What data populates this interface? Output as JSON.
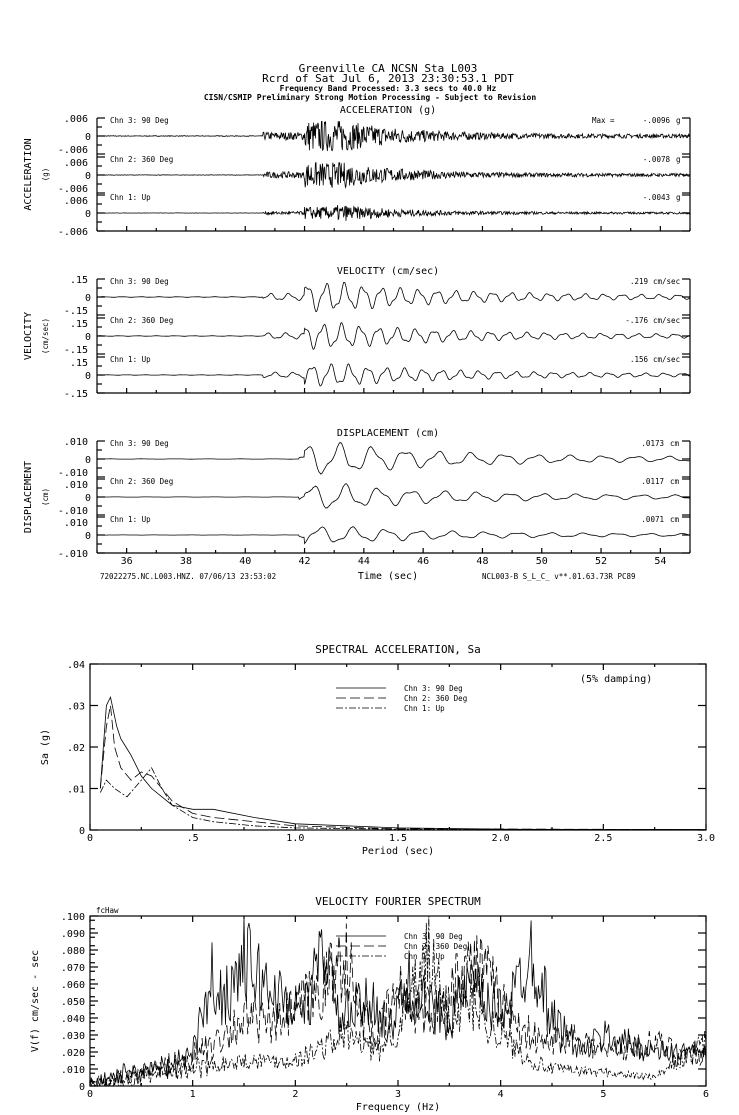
{
  "header": {
    "line1": "Greenville CA    NCSN Sta L003",
    "line2": "Rcrd of Sat Jul  6, 2013 23:30:53.1 PDT",
    "line3": "Frequency Band Processed: 3.3 secs to 40.0 Hz",
    "line4": "CISN/CSMIP Preliminary Strong Motion Processing - Subject to Revision"
  },
  "footer": {
    "left": "72022275.NC.L003.HNZ. 07/06/13 23:53:02",
    "right": "NCL003-B  S_L_C_  v**.01.63.73R PC89"
  },
  "chart_data": [
    {
      "type": "line",
      "title": "ACCELERATION (g)",
      "ylabel": "ACCELERATION",
      "yunit": "(g)",
      "xlabel": "Time (sec)",
      "xlim": [
        35,
        55
      ],
      "xticks": [
        "36",
        "38",
        "40",
        "42",
        "44",
        "46",
        "48",
        "50",
        "52",
        "54"
      ],
      "ylim": [
        -0.006,
        0.006
      ],
      "yticks": [
        ".006",
        "0",
        "-.006"
      ],
      "max_prefix": "Max =",
      "series": [
        {
          "name": "Chn 3: 90 Deg",
          "peak": "-.0096",
          "unit": "g"
        },
        {
          "name": "Chn 2: 360 Deg",
          "peak": "-.0078",
          "unit": "g"
        },
        {
          "name": "Chn 1: Up",
          "peak": "-.0043",
          "unit": "g"
        }
      ]
    },
    {
      "type": "line",
      "title": "VELOCITY (cm/sec)",
      "ylabel": "VELOCITY",
      "yunit": "(cm/sec)",
      "xlim": [
        35,
        55
      ],
      "ylim": [
        -0.15,
        0.15
      ],
      "yticks": [
        ".15",
        "0",
        "-.15"
      ],
      "series": [
        {
          "name": "Chn 3: 90 Deg",
          "peak": ".219",
          "unit": "cm/sec"
        },
        {
          "name": "Chn 2: 360 Deg",
          "peak": "-.176",
          "unit": "cm/sec"
        },
        {
          "name": "Chn 1: Up",
          "peak": ".156",
          "unit": "cm/sec"
        }
      ]
    },
    {
      "type": "line",
      "title": "DISPLACEMENT (cm)",
      "ylabel": "DISPLACEMENT",
      "yunit": "(cm)",
      "xlim": [
        35,
        55
      ],
      "ylim": [
        -0.01,
        0.01
      ],
      "yticks": [
        ".010",
        "0",
        "-.010"
      ],
      "series": [
        {
          "name": "Chn 3: 90 Deg",
          "peak": ".0173",
          "unit": "cm"
        },
        {
          "name": "Chn 2: 360 Deg",
          "peak": ".0117",
          "unit": "cm"
        },
        {
          "name": "Chn 1: Up",
          "peak": ".0071",
          "unit": "cm"
        }
      ]
    },
    {
      "type": "line",
      "title": "SPECTRAL ACCELERATION, Sa",
      "annotation": "(5% damping)",
      "xlabel": "Period (sec)",
      "ylabel": "Sa (g)",
      "xlim": [
        0,
        3
      ],
      "ylim": [
        0,
        0.04
      ],
      "xticks": [
        "0",
        ".5",
        "1.0",
        "1.5",
        "2.0",
        "2.5",
        "3.0"
      ],
      "yticks": [
        "0",
        ".01",
        ".02",
        ".03",
        ".04"
      ],
      "legend": "top-center",
      "series": [
        {
          "name": "Chn 3: 90 Deg",
          "style": "solid",
          "x": [
            0.05,
            0.08,
            0.1,
            0.13,
            0.15,
            0.2,
            0.25,
            0.3,
            0.4,
            0.5,
            0.6,
            0.8,
            1.0,
            1.5,
            2.0,
            3.0
          ],
          "y": [
            0.01,
            0.03,
            0.032,
            0.025,
            0.022,
            0.018,
            0.013,
            0.01,
            0.006,
            0.005,
            0.005,
            0.003,
            0.0015,
            0.0005,
            0.0002,
            0.0001
          ]
        },
        {
          "name": "Chn 2: 360 Deg",
          "style": "dashed",
          "x": [
            0.05,
            0.08,
            0.1,
            0.12,
            0.15,
            0.2,
            0.25,
            0.3,
            0.4,
            0.5,
            0.6,
            0.8,
            1.0,
            1.5,
            3.0
          ],
          "y": [
            0.01,
            0.025,
            0.03,
            0.02,
            0.015,
            0.012,
            0.014,
            0.013,
            0.007,
            0.004,
            0.003,
            0.002,
            0.001,
            0.0003,
            0.0001
          ]
        },
        {
          "name": "Chn 1: Up",
          "style": "dashdot",
          "x": [
            0.05,
            0.08,
            0.12,
            0.18,
            0.25,
            0.3,
            0.35,
            0.4,
            0.5,
            0.6,
            0.8,
            1.0,
            1.5,
            3.0
          ],
          "y": [
            0.009,
            0.012,
            0.01,
            0.008,
            0.012,
            0.015,
            0.01,
            0.006,
            0.003,
            0.002,
            0.001,
            0.0005,
            0.0002,
            0.0001
          ]
        }
      ]
    },
    {
      "type": "line",
      "title": "VELOCITY FOURIER SPECTRUM",
      "corner_label": "fcHaw",
      "xlabel": "Frequency (Hz)",
      "ylabel": "V(f)   cm/sec - sec",
      "xlim": [
        0,
        6
      ],
      "ylim": [
        0,
        0.1
      ],
      "xticks": [
        "0",
        "1",
        "2",
        "3",
        "4",
        "5",
        "6"
      ],
      "yticks": [
        "0",
        ".010",
        ".020",
        ".030",
        ".040",
        ".050",
        ".060",
        ".070",
        ".080",
        ".090",
        ".100"
      ],
      "legend": "top-center",
      "series": [
        {
          "name": "Chn 3: 90 Deg",
          "style": "solid",
          "x": [
            0,
            0.3,
            0.5,
            0.8,
            1.0,
            1.1,
            1.2,
            1.3,
            1.5,
            1.7,
            1.9,
            2.1,
            2.3,
            2.4,
            2.6,
            2.8,
            2.9,
            3.1,
            3.3,
            3.5,
            3.7,
            3.9,
            4.1,
            4.3,
            4.5,
            4.8,
            5.0,
            5.5,
            6.0
          ],
          "y": [
            0,
            0.008,
            0.01,
            0.01,
            0.02,
            0.04,
            0.065,
            0.05,
            0.075,
            0.06,
            0.05,
            0.045,
            0.085,
            0.04,
            0.045,
            0.05,
            0.03,
            0.06,
            0.045,
            0.04,
            0.06,
            0.045,
            0.05,
            0.08,
            0.04,
            0.02,
            0.03,
            0.02,
            0.02
          ]
        },
        {
          "name": "Chn 2: 360 Deg",
          "style": "dashed",
          "x": [
            0,
            0.5,
            1.0,
            1.3,
            1.5,
            1.8,
            2.0,
            2.3,
            2.5,
            2.6,
            2.8,
            3.0,
            3.2,
            3.4,
            3.6,
            3.8,
            4.0,
            4.2,
            4.4,
            4.7,
            5.0,
            5.5,
            6.0
          ],
          "y": [
            0,
            0.008,
            0.015,
            0.03,
            0.04,
            0.035,
            0.045,
            0.06,
            0.08,
            0.045,
            0.03,
            0.055,
            0.045,
            0.045,
            0.07,
            0.07,
            0.05,
            0.035,
            0.025,
            0.03,
            0.02,
            0.025,
            0.015
          ]
        },
        {
          "name": "Chn 1: Up",
          "style": "dashdot",
          "x": [
            0,
            0.5,
            1.0,
            1.5,
            2.0,
            2.5,
            2.8,
            3.0,
            3.3,
            3.5,
            3.7,
            4.0,
            4.3,
            4.5,
            5.0,
            5.5,
            6.0
          ],
          "y": [
            0,
            0.005,
            0.01,
            0.015,
            0.015,
            0.03,
            0.02,
            0.035,
            0.075,
            0.04,
            0.05,
            0.03,
            0.015,
            0.01,
            0.008,
            0.005,
            0.025
          ]
        }
      ]
    }
  ]
}
